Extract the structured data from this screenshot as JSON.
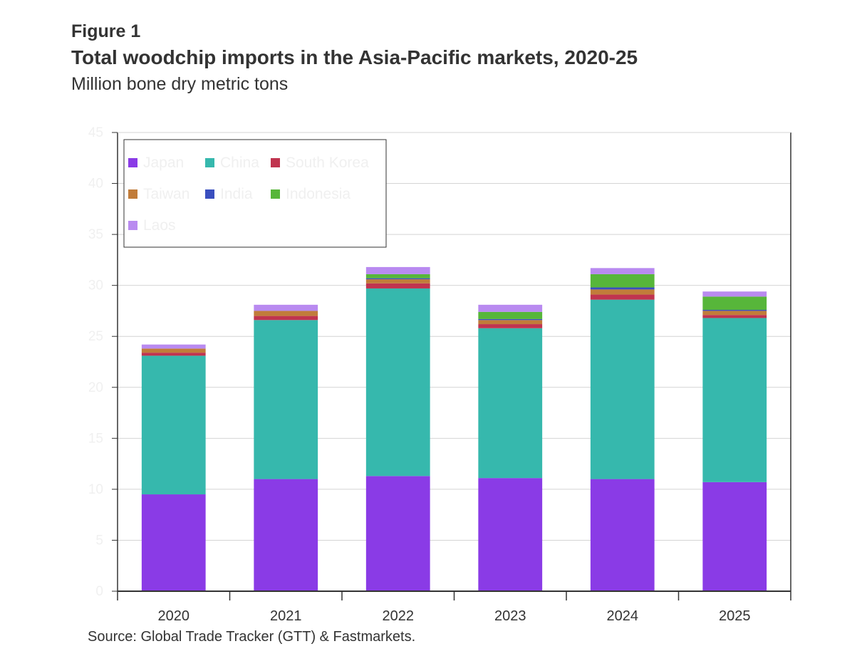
{
  "figure_label": "Figure 1",
  "title": "Total woodchip imports in the Asia-Pacific markets, 2020-25",
  "subtitle": "Million bone dry metric tons",
  "source": "Source: Global Trade Tracker (GTT) & Fastmarkets.",
  "chart_data": {
    "type": "bar",
    "stacked": true,
    "title": "Total woodchip imports in the Asia-Pacific markets, 2020-25",
    "ylabel": "Million bone dry metric tons",
    "ylim": [
      0,
      45
    ],
    "yticks": [
      0,
      5,
      10,
      15,
      20,
      25,
      30,
      35,
      40,
      45
    ],
    "grid": true,
    "legend_position": "top-left",
    "categories": [
      "2020",
      "2021",
      "2022",
      "2023",
      "2024",
      "2025"
    ],
    "series": [
      {
        "name": "Japan",
        "color": "#8a3be6",
        "values": [
          9.5,
          11.0,
          11.3,
          11.1,
          11.0,
          10.7
        ]
      },
      {
        "name": "China",
        "color": "#36b8ad",
        "values": [
          13.6,
          15.6,
          18.4,
          14.7,
          17.6,
          16.1
        ]
      },
      {
        "name": "South Korea",
        "color": "#c0344f",
        "values": [
          0.3,
          0.4,
          0.5,
          0.4,
          0.5,
          0.3
        ]
      },
      {
        "name": "Taiwan",
        "color": "#c17c3a",
        "values": [
          0.4,
          0.5,
          0.4,
          0.4,
          0.5,
          0.4
        ]
      },
      {
        "name": "India",
        "color": "#3a4fbf",
        "values": [
          0.0,
          0.0,
          0.1,
          0.1,
          0.2,
          0.1
        ]
      },
      {
        "name": "Indonesia",
        "color": "#57b63a",
        "values": [
          0.0,
          0.0,
          0.4,
          0.7,
          1.3,
          1.3
        ]
      },
      {
        "name": "Laos",
        "color": "#b98af0",
        "values": [
          0.4,
          0.6,
          0.7,
          0.7,
          0.6,
          0.5
        ]
      }
    ]
  }
}
